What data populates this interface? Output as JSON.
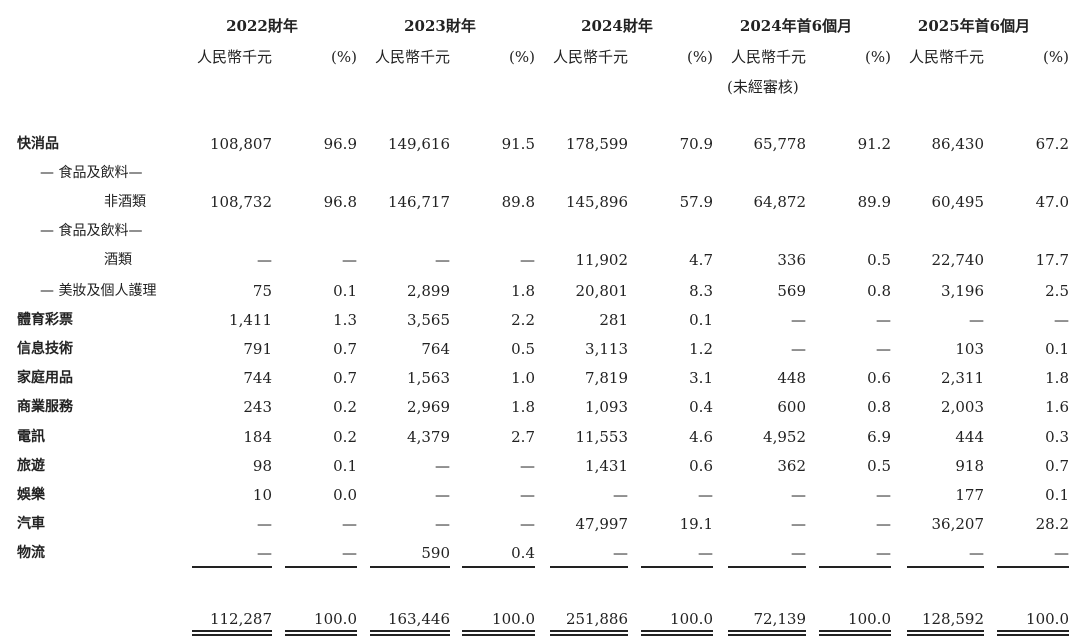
{
  "header": {
    "periods": [
      "2022財年",
      "2023財年",
      "2024財年",
      "2024年首6個月",
      "2025年首6個月"
    ],
    "unit": "人民幣千元",
    "pct": "(%)",
    "unaudited": "(未經審核)"
  },
  "rows": [
    {
      "label": "快消品",
      "values": [
        "108,807",
        "96.9",
        "149,616",
        "91.5",
        "178,599",
        "70.9",
        "65,778",
        "91.2",
        "86,430",
        "67.2"
      ]
    },
    {
      "label": "— 食品及飲料—",
      "values": []
    },
    {
      "label": "非酒類",
      "values": [
        "108,732",
        "96.8",
        "146,717",
        "89.8",
        "145,896",
        "57.9",
        "64,872",
        "89.9",
        "60,495",
        "47.0"
      ]
    },
    {
      "label": "— 食品及飲料—",
      "values": []
    },
    {
      "label": "酒類",
      "values": [
        "—",
        "—",
        "—",
        "—",
        "11,902",
        "4.7",
        "336",
        "0.5",
        "22,740",
        "17.7"
      ]
    },
    {
      "label": "— 美妝及個人護理",
      "values": [
        "75",
        "0.1",
        "2,899",
        "1.8",
        "20,801",
        "8.3",
        "569",
        "0.8",
        "3,196",
        "2.5"
      ]
    },
    {
      "label": "體育彩票",
      "values": [
        "1,411",
        "1.3",
        "3,565",
        "2.2",
        "281",
        "0.1",
        "—",
        "—",
        "—",
        "—"
      ]
    },
    {
      "label": "信息技術",
      "values": [
        "791",
        "0.7",
        "764",
        "0.5",
        "3,113",
        "1.2",
        "—",
        "—",
        "103",
        "0.1"
      ]
    },
    {
      "label": "家庭用品",
      "values": [
        "744",
        "0.7",
        "1,563",
        "1.0",
        "7,819",
        "3.1",
        "448",
        "0.6",
        "2,311",
        "1.8"
      ]
    },
    {
      "label": "商業服務",
      "values": [
        "243",
        "0.2",
        "2,969",
        "1.8",
        "1,093",
        "0.4",
        "600",
        "0.8",
        "2,003",
        "1.6"
      ]
    },
    {
      "label": "電訊",
      "values": [
        "184",
        "0.2",
        "4,379",
        "2.7",
        "11,553",
        "4.6",
        "4,952",
        "6.9",
        "444",
        "0.3"
      ]
    },
    {
      "label": "旅遊",
      "values": [
        "98",
        "0.1",
        "—",
        "—",
        "1,431",
        "0.6",
        "362",
        "0.5",
        "918",
        "0.7"
      ]
    },
    {
      "label": "娛樂",
      "values": [
        "10",
        "0.0",
        "—",
        "—",
        "—",
        "—",
        "—",
        "—",
        "177",
        "0.1"
      ]
    },
    {
      "label": "汽車",
      "values": [
        "—",
        "—",
        "—",
        "—",
        "47,997",
        "19.1",
        "—",
        "—",
        "36,207",
        "28.2"
      ]
    },
    {
      "label": "物流",
      "values": [
        "—",
        "—",
        "590",
        "0.4",
        "—",
        "—",
        "—",
        "—",
        "—",
        "—"
      ]
    }
  ],
  "totals": [
    "112,287",
    "100.0",
    "163,446",
    "100.0",
    "251,886",
    "100.0",
    "72,139",
    "100.0",
    "128,592",
    "100.0"
  ]
}
